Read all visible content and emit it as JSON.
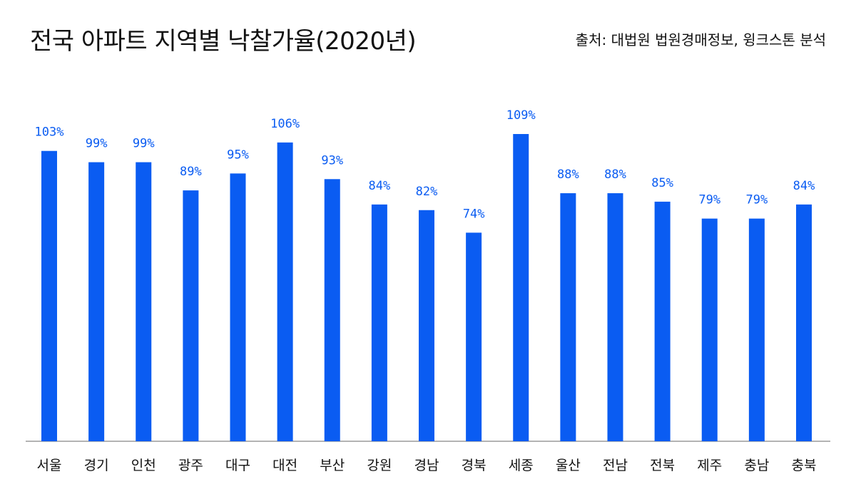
{
  "chart_data": {
    "type": "bar",
    "title": "전국 아파트 지역별 낙찰가율(2020년)",
    "source": "출처: 대법원 법원경매정보, 윙크스톤 분석",
    "xlabel": "",
    "ylabel": "",
    "ylim": [
      0,
      109
    ],
    "grid": false,
    "legend": "none",
    "value_suffix": "%",
    "categories": [
      "서울",
      "경기",
      "인천",
      "광주",
      "대구",
      "대전",
      "부산",
      "강원",
      "경남",
      "경북",
      "세종",
      "울산",
      "전남",
      "전북",
      "제주",
      "충남",
      "충북"
    ],
    "values": [
      103,
      99,
      99,
      89,
      95,
      106,
      93,
      84,
      82,
      74,
      109,
      88,
      88,
      85,
      79,
      79,
      84
    ],
    "colors": {
      "bar": "#0a5cf2",
      "value_label": "#0a5cf2",
      "axis": "#9a9a9a",
      "text": "#111111"
    }
  }
}
